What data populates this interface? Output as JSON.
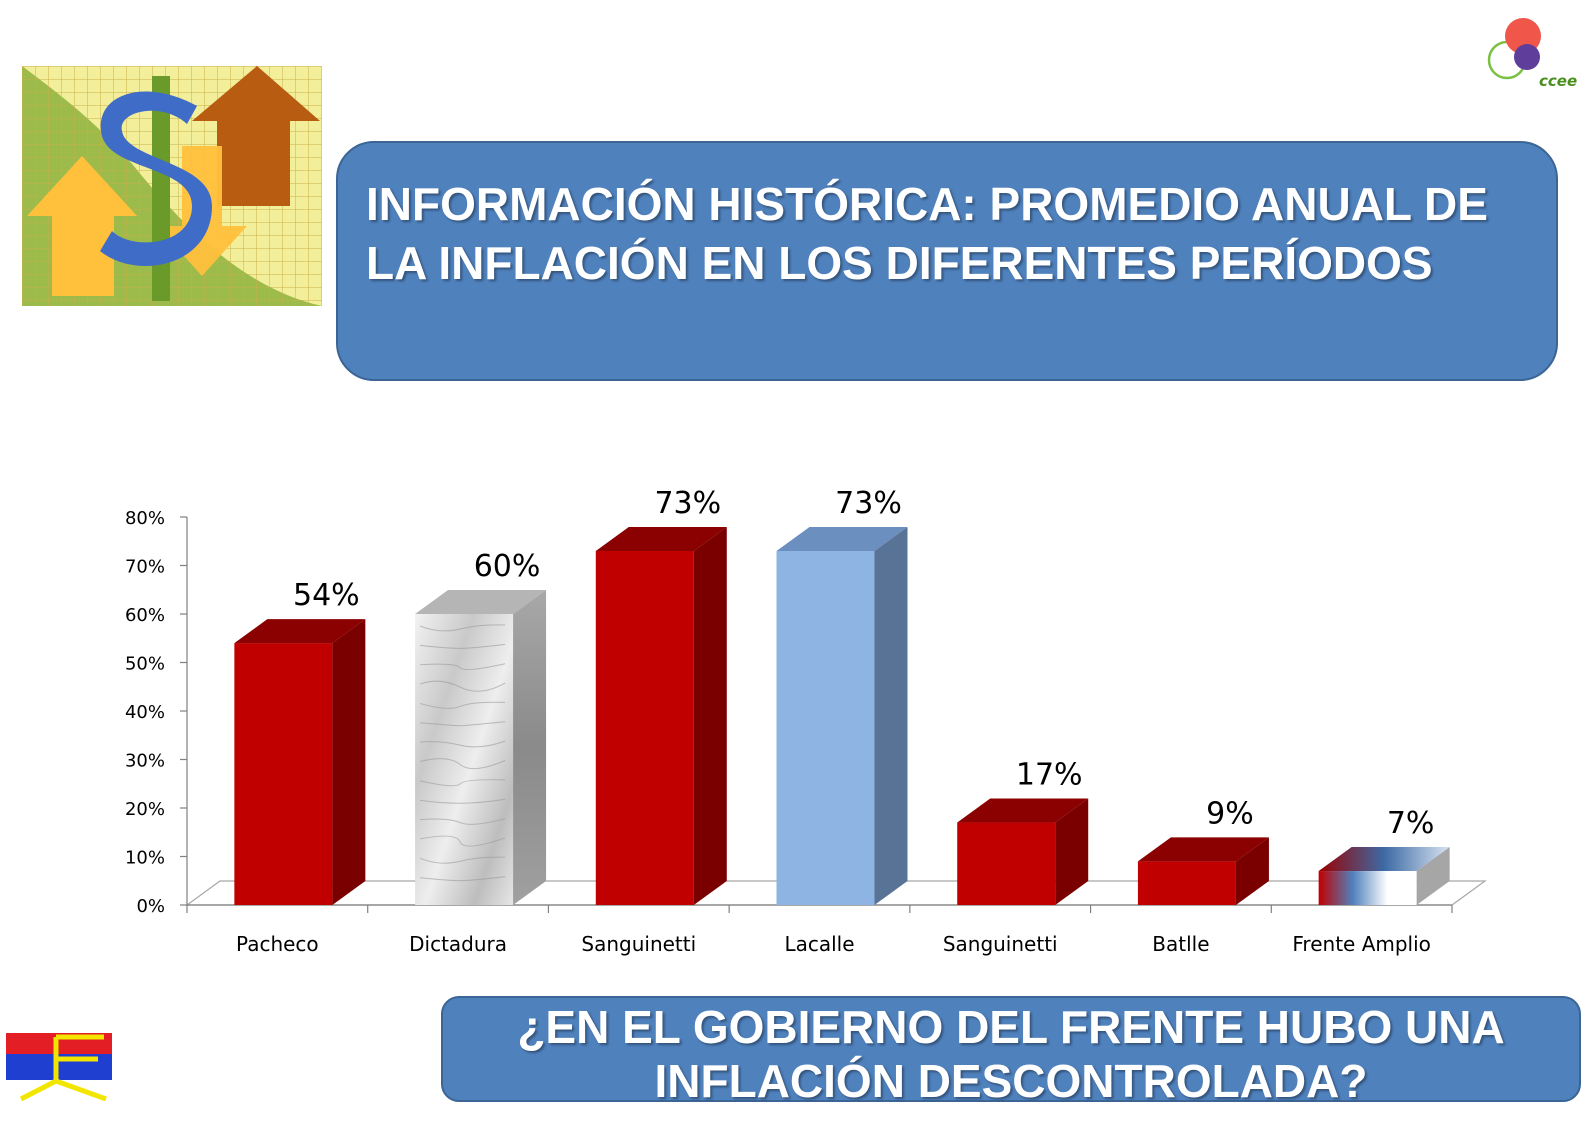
{
  "title": "INFORMACIÓN HISTÓRICA: PROMEDIO ANUAL DE LA INFLACIÓN EN LOS DIFERENTES PERÍODOS",
  "question": "¿EN EL GOBIERNO DEL FRENTE HUBO UNA INFLACIÓN DESCONTROLADA?",
  "logos": {
    "top_right_text": "ccee"
  },
  "icons": {
    "top_left": "money-arrows-icon",
    "top_right": "ccee-logo-icon",
    "bottom_left": "frente-amplio-flag-icon"
  },
  "colors": {
    "box_blue": "#4f81bd",
    "bar_red": "#c00000",
    "bar_light_blue": "#8eb4e3"
  },
  "chart_data": {
    "type": "bar",
    "categories": [
      "Pacheco",
      "Dictadura",
      "Sanguinetti",
      "Lacalle",
      "Sanguinetti",
      "Batlle",
      "Frente Amplio"
    ],
    "values": [
      54,
      60,
      73,
      73,
      17,
      9,
      7
    ],
    "value_labels": [
      "54%",
      "60%",
      "73%",
      "73%",
      "17%",
      "9%",
      "7%"
    ],
    "bar_styles": [
      "red",
      "marble",
      "red",
      "lightblue",
      "red",
      "red",
      "gradient"
    ],
    "ylim": [
      0,
      80
    ],
    "yticks": [
      0,
      10,
      20,
      30,
      40,
      50,
      60,
      70,
      80
    ],
    "ytick_labels": [
      "0%",
      "10%",
      "20%",
      "30%",
      "40%",
      "50%",
      "60%",
      "70%",
      "80%"
    ],
    "title": "",
    "xlabel": "",
    "ylabel": "",
    "grid": false,
    "legend": false
  }
}
